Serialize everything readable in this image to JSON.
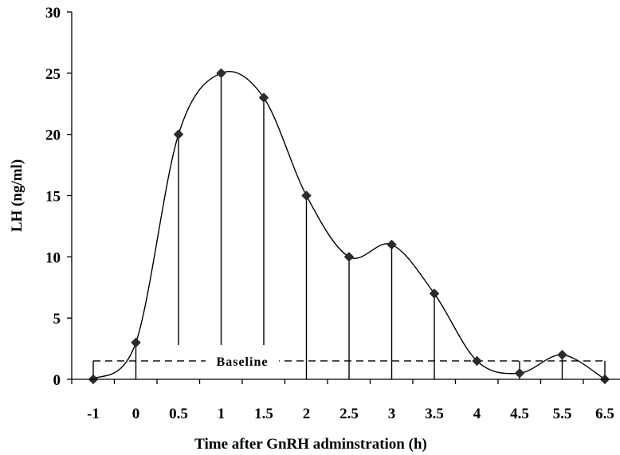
{
  "chart_data": {
    "type": "line",
    "title": "",
    "xlabel": "Time after GnRH adminstration (h)",
    "ylabel": "LH (ng/ml)",
    "categories": [
      "-1",
      "0",
      "0.5",
      "1",
      "1.5",
      "2",
      "2.5",
      "3",
      "3.5",
      "4",
      "4.5",
      "5.5",
      "6.5"
    ],
    "series": [
      {
        "values": [
          0,
          3,
          20,
          25,
          23,
          15,
          10,
          11,
          7,
          1.5,
          0.5,
          2,
          0
        ]
      }
    ],
    "ylim": [
      0,
      30
    ],
    "yticks": [
      "0",
      "5",
      "10",
      "15",
      "20",
      "25",
      "30"
    ],
    "baseline": {
      "label": "Baseline",
      "value": 1.5
    },
    "grid": false,
    "legend": "none",
    "colors": {
      "line": "#000000",
      "marker": "#2b2b2b"
    }
  }
}
